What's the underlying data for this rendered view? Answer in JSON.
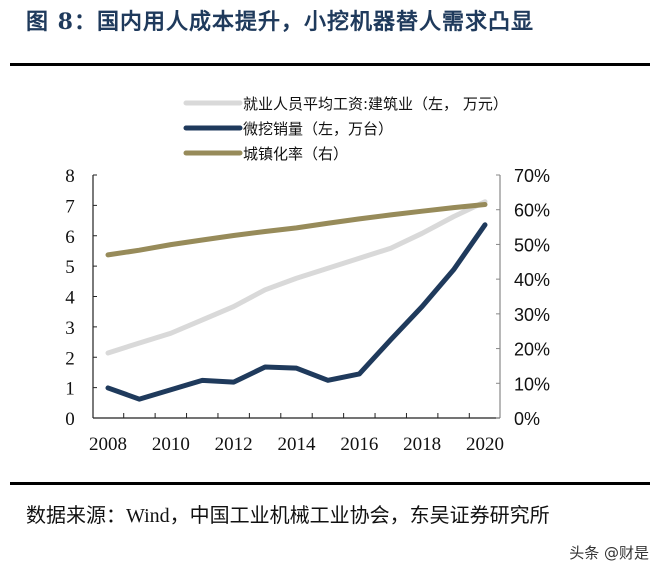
{
  "title": "图 8：国内用人成本提升，小挖机器替人需求凸显",
  "source": "数据来源：Wind，中国工业机械工业协会，东吴证券研究所",
  "watermark": "头条 @财是",
  "chart_data": {
    "type": "line",
    "x": [
      2008,
      2009,
      2010,
      2011,
      2012,
      2013,
      2014,
      2015,
      2016,
      2017,
      2018,
      2019,
      2020
    ],
    "x_tick_labels": [
      "2008",
      "2010",
      "2012",
      "2014",
      "2016",
      "2018",
      "2020"
    ],
    "left_axis": {
      "ylim": [
        0,
        8
      ],
      "ticks": [
        "0",
        "1",
        "2",
        "3",
        "4",
        "5",
        "6",
        "7",
        "8"
      ]
    },
    "right_axis": {
      "ylim": [
        0,
        70
      ],
      "ticks": [
        "0%",
        "10%",
        "20%",
        "30%",
        "40%",
        "50%",
        "60%",
        "70%"
      ]
    },
    "legend_position": "top",
    "grid": false,
    "series": [
      {
        "name": "就业人员平均工资:建筑业（左， 万元）",
        "axis": "left",
        "color": "#d9d9d9",
        "values": [
          2.14,
          2.47,
          2.79,
          3.23,
          3.67,
          4.22,
          4.6,
          4.93,
          5.26,
          5.59,
          6.08,
          6.63,
          7.12
        ]
      },
      {
        "name": "微挖销量（左，万台）",
        "axis": "left",
        "color": "#1f3a5c",
        "values": [
          0.99,
          0.62,
          0.93,
          1.24,
          1.18,
          1.68,
          1.64,
          1.24,
          1.45,
          2.58,
          3.67,
          4.88,
          6.36
        ]
      },
      {
        "name": "城镇化率（右）",
        "axis": "right",
        "color": "#978b5a",
        "values": [
          46.99,
          48.34,
          49.95,
          51.27,
          52.57,
          53.73,
          54.77,
          56.1,
          57.35,
          58.52,
          59.58,
          60.6,
          61.5
        ]
      }
    ]
  }
}
